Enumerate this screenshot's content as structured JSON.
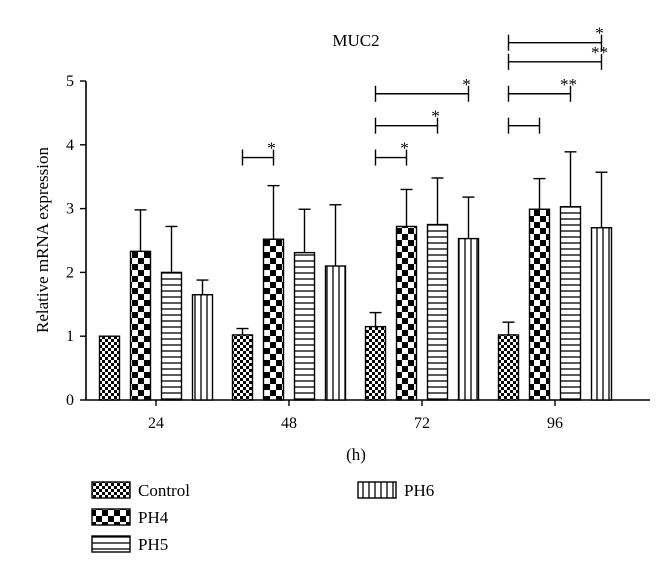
{
  "chart_data": {
    "type": "bar",
    "title": "MUC2",
    "xlabel": "(h)",
    "ylabel": "Relative mRNA expression",
    "ylim": [
      0,
      5
    ],
    "yticks": [
      0,
      1,
      2,
      3,
      4,
      5
    ],
    "categories": [
      "24",
      "48",
      "72",
      "96"
    ],
    "series": [
      {
        "name": "Control",
        "pattern": "checker-small",
        "values": [
          1.0,
          1.02,
          1.15,
          1.02
        ],
        "errors": [
          0.0,
          0.1,
          0.22,
          0.2
        ]
      },
      {
        "name": "PH4",
        "pattern": "checker-large",
        "values": [
          2.33,
          2.52,
          2.72,
          2.99
        ],
        "errors": [
          0.65,
          0.84,
          0.58,
          0.48
        ]
      },
      {
        "name": "PH5",
        "pattern": "horizontal-lines",
        "values": [
          2.0,
          2.31,
          2.75,
          3.03
        ],
        "errors": [
          0.72,
          0.68,
          0.73,
          0.86
        ]
      },
      {
        "name": "PH6",
        "pattern": "vertical-lines",
        "values": [
          1.65,
          2.1,
          2.53,
          2.7
        ],
        "errors": [
          0.23,
          0.96,
          0.65,
          0.87
        ]
      }
    ],
    "significance": [
      {
        "category": "48",
        "from_series": 0,
        "to_series": 1,
        "y": 3.8,
        "label": "*"
      },
      {
        "category": "72",
        "from_series": 0,
        "to_series": 1,
        "y": 3.8,
        "label": "*"
      },
      {
        "category": "72",
        "from_series": 0,
        "to_series": 2,
        "y": 4.3,
        "label": "*"
      },
      {
        "category": "72",
        "from_series": 0,
        "to_series": 3,
        "y": 4.8,
        "label": "*"
      },
      {
        "category": "96",
        "from_series": 0,
        "to_series": 1,
        "y": 4.3,
        "label": ""
      },
      {
        "category": "96",
        "from_series": 0,
        "to_series": 2,
        "y": 4.8,
        "label": "**"
      },
      {
        "category": "96",
        "from_series": 0,
        "to_series": 3,
        "y": 5.3,
        "label": "**"
      },
      {
        "category": "96",
        "from_series": 0,
        "to_series": 3,
        "y": 5.6,
        "label": "*"
      }
    ],
    "legend_position": "bottom-left, two columns"
  }
}
